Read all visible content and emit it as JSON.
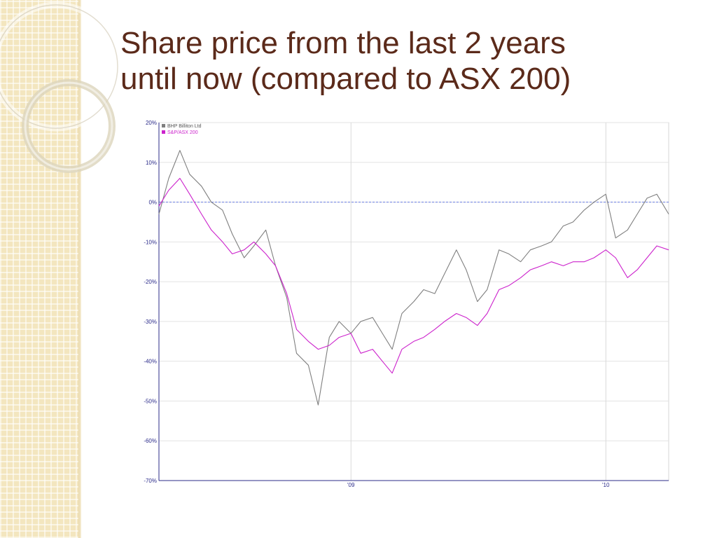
{
  "slide": {
    "title_line1": "Share price from the last 2 years",
    "title_line2": "until now (compared to ASX 200)"
  },
  "colors": {
    "title": "#5b2a1a",
    "bhp_series": "#7f7f7f",
    "asx_series": "#cc22cc",
    "zero_line": "#6b7fe0",
    "axis": "#2b2b8a",
    "tick_label": "#2b2b8a"
  },
  "chart_data": {
    "type": "line",
    "title": "",
    "xlabel": "",
    "ylabel": "",
    "ylim": [
      -70,
      20
    ],
    "xlim": [
      "2008-04-01",
      "2010-04-01"
    ],
    "y_ticks": [
      "20%",
      "10%",
      "0%",
      "-10%",
      "-20%",
      "-30%",
      "-40%",
      "-50%",
      "-60%",
      "-70%"
    ],
    "y_tick_values": [
      20,
      10,
      0,
      -10,
      -20,
      -30,
      -40,
      -50,
      -60,
      -70
    ],
    "x_ticks": [
      {
        "label": "'09",
        "date": "2009-01-01"
      },
      {
        "label": "'10",
        "date": "2010-01-01"
      }
    ],
    "grid": true,
    "reference_line": {
      "value": 0,
      "style": "dashed"
    },
    "legend": {
      "placement": "top-left"
    },
    "series": [
      {
        "name": "BHP Billiton Ltd",
        "color": "#7f7f7f",
        "points": [
          [
            "2008-04-01",
            -3
          ],
          [
            "2008-04-15",
            6
          ],
          [
            "2008-05-01",
            13
          ],
          [
            "2008-05-15",
            7
          ],
          [
            "2008-06-01",
            4
          ],
          [
            "2008-06-15",
            0
          ],
          [
            "2008-07-01",
            -2
          ],
          [
            "2008-07-15",
            -8
          ],
          [
            "2008-08-01",
            -14
          ],
          [
            "2008-08-15",
            -11
          ],
          [
            "2008-09-01",
            -7
          ],
          [
            "2008-09-15",
            -16
          ],
          [
            "2008-10-01",
            -24
          ],
          [
            "2008-10-15",
            -38
          ],
          [
            "2008-11-01",
            -41
          ],
          [
            "2008-11-15",
            -51
          ],
          [
            "2008-12-01",
            -34
          ],
          [
            "2008-12-15",
            -30
          ],
          [
            "2009-01-01",
            -33
          ],
          [
            "2009-01-15",
            -30
          ],
          [
            "2009-02-01",
            -29
          ],
          [
            "2009-02-15",
            -33
          ],
          [
            "2009-03-01",
            -37
          ],
          [
            "2009-03-15",
            -28
          ],
          [
            "2009-04-01",
            -25
          ],
          [
            "2009-04-15",
            -22
          ],
          [
            "2009-05-01",
            -23
          ],
          [
            "2009-05-15",
            -18
          ],
          [
            "2009-06-01",
            -12
          ],
          [
            "2009-06-15",
            -17
          ],
          [
            "2009-07-01",
            -25
          ],
          [
            "2009-07-15",
            -22
          ],
          [
            "2009-08-01",
            -12
          ],
          [
            "2009-08-15",
            -13
          ],
          [
            "2009-09-01",
            -15
          ],
          [
            "2009-09-15",
            -12
          ],
          [
            "2009-10-01",
            -11
          ],
          [
            "2009-10-15",
            -10
          ],
          [
            "2009-11-01",
            -6
          ],
          [
            "2009-11-15",
            -5
          ],
          [
            "2009-12-01",
            -2
          ],
          [
            "2009-12-15",
            0
          ],
          [
            "2010-01-01",
            2
          ],
          [
            "2010-01-15",
            -9
          ],
          [
            "2010-02-01",
            -7
          ],
          [
            "2010-02-15",
            -3
          ],
          [
            "2010-03-01",
            1
          ],
          [
            "2010-03-15",
            2
          ],
          [
            "2010-04-01",
            -3
          ]
        ]
      },
      {
        "name": "S&P/ASX 200",
        "color": "#cc22cc",
        "points": [
          [
            "2008-04-01",
            -1
          ],
          [
            "2008-04-15",
            3
          ],
          [
            "2008-05-01",
            6
          ],
          [
            "2008-05-15",
            2
          ],
          [
            "2008-06-01",
            -3
          ],
          [
            "2008-06-15",
            -7
          ],
          [
            "2008-07-01",
            -10
          ],
          [
            "2008-07-15",
            -13
          ],
          [
            "2008-08-01",
            -12
          ],
          [
            "2008-08-15",
            -10
          ],
          [
            "2008-09-01",
            -13
          ],
          [
            "2008-09-15",
            -16
          ],
          [
            "2008-10-01",
            -23
          ],
          [
            "2008-10-15",
            -32
          ],
          [
            "2008-11-01",
            -35
          ],
          [
            "2008-11-15",
            -37
          ],
          [
            "2008-12-01",
            -36
          ],
          [
            "2008-12-15",
            -34
          ],
          [
            "2009-01-01",
            -33
          ],
          [
            "2009-01-15",
            -38
          ],
          [
            "2009-02-01",
            -37
          ],
          [
            "2009-02-15",
            -40
          ],
          [
            "2009-03-01",
            -43
          ],
          [
            "2009-03-15",
            -37
          ],
          [
            "2009-04-01",
            -35
          ],
          [
            "2009-04-15",
            -34
          ],
          [
            "2009-05-01",
            -32
          ],
          [
            "2009-05-15",
            -30
          ],
          [
            "2009-06-01",
            -28
          ],
          [
            "2009-06-15",
            -29
          ],
          [
            "2009-07-01",
            -31
          ],
          [
            "2009-07-15",
            -28
          ],
          [
            "2009-08-01",
            -22
          ],
          [
            "2009-08-15",
            -21
          ],
          [
            "2009-09-01",
            -19
          ],
          [
            "2009-09-15",
            -17
          ],
          [
            "2009-10-01",
            -16
          ],
          [
            "2009-10-15",
            -15
          ],
          [
            "2009-11-01",
            -16
          ],
          [
            "2009-11-15",
            -15
          ],
          [
            "2009-12-01",
            -15
          ],
          [
            "2009-12-15",
            -14
          ],
          [
            "2010-01-01",
            -12
          ],
          [
            "2010-01-15",
            -14
          ],
          [
            "2010-02-01",
            -19
          ],
          [
            "2010-02-15",
            -17
          ],
          [
            "2010-03-01",
            -14
          ],
          [
            "2010-03-15",
            -11
          ],
          [
            "2010-04-01",
            -12
          ]
        ]
      }
    ]
  }
}
